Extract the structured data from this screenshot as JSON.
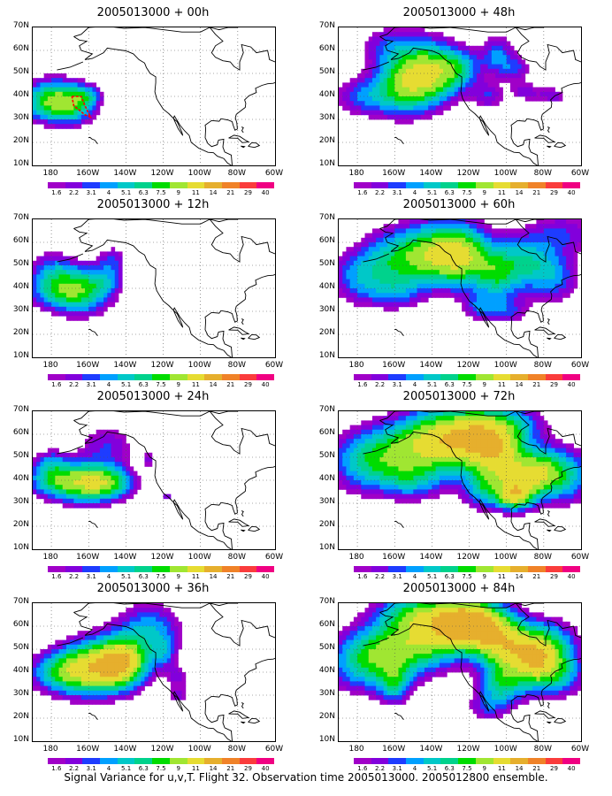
{
  "panels": [
    {
      "title": "2005013000 + 00h",
      "lead": "00h"
    },
    {
      "title": "2005013000 + 48h",
      "lead": "48h"
    },
    {
      "title": "2005013000 + 12h",
      "lead": "12h"
    },
    {
      "title": "2005013000 + 60h",
      "lead": "60h"
    },
    {
      "title": "2005013000 + 24h",
      "lead": "24h"
    },
    {
      "title": "2005013000 + 72h",
      "lead": "72h"
    },
    {
      "title": "2005013000 + 36h",
      "lead": "36h"
    },
    {
      "title": "2005013000 + 84h",
      "lead": "84h"
    }
  ],
  "lat_labels": [
    "70N",
    "60N",
    "50N",
    "40N",
    "30N",
    "20N",
    "10N"
  ],
  "lon_labels": [
    "180",
    "160W",
    "140W",
    "120W",
    "100W",
    "80W",
    "60W"
  ],
  "colorbar": {
    "labels": [
      "1.6",
      "2.2",
      "3.1",
      "4",
      "5.1",
      "6.3",
      "7.5",
      "9",
      "11",
      "14",
      "21",
      "29",
      "40"
    ],
    "colors": [
      "#a000c8",
      "#8200dc",
      "#1e3cff",
      "#00a0ff",
      "#00c8c8",
      "#00d28c",
      "#00dc00",
      "#a0e632",
      "#e6dc32",
      "#e6af2d",
      "#f08228",
      "#fa3c3c",
      "#f00082"
    ]
  },
  "footer": "Signal Variance for u,v,T. Flight 32. Observation time 2005013000. 2005012800 ensemble."
}
